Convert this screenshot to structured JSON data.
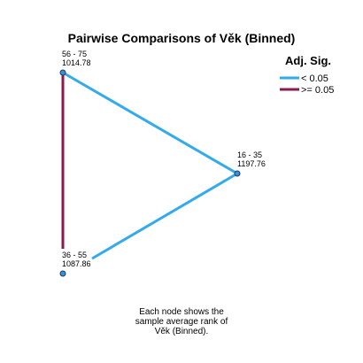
{
  "title": "Pairwise Comparisons of Věk (Binned)",
  "legend": {
    "title": "Adj. Sig.",
    "items": [
      {
        "label": "< 0.05",
        "color": "#33aaee"
      },
      {
        "label": ">= 0.05",
        "color": "#8c1a4b"
      }
    ]
  },
  "nodes": [
    {
      "id": "n56",
      "range": "56 - 75",
      "rank": "1014.78"
    },
    {
      "id": "n16",
      "range": "16 - 35",
      "rank": "1197.76"
    },
    {
      "id": "n36",
      "range": "36 - 55",
      "rank": "1087.86"
    }
  ],
  "edges": [
    {
      "from": "n56",
      "to": "n16",
      "significance": "< 0.05"
    },
    {
      "from": "n16",
      "to": "n36",
      "significance": "< 0.05"
    },
    {
      "from": "n56",
      "to": "n36",
      "significance": ">= 0.05"
    }
  ],
  "caption": [
    "Each node shows the",
    "sample average rank of",
    "Věk (Binned)."
  ]
}
